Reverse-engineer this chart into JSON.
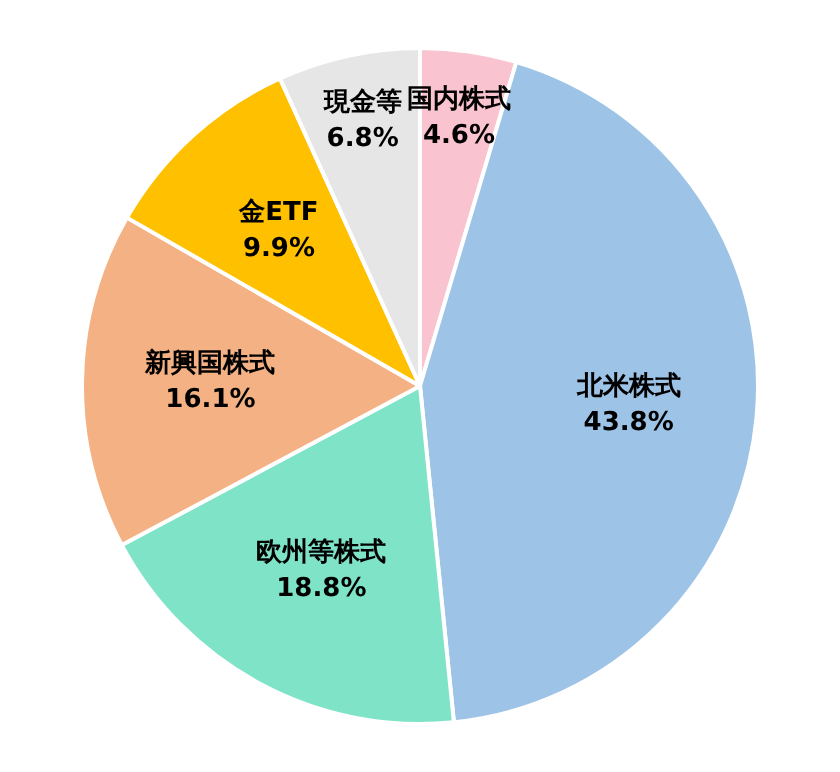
{
  "chart_data": {
    "type": "pie",
    "categories": [
      "国内株式",
      "北米株式",
      "欧州等株式",
      "新興国株式",
      "金ETF",
      "現金等"
    ],
    "values": [
      4.6,
      43.8,
      18.8,
      16.1,
      9.9,
      6.8
    ],
    "value_labels": [
      "4.6%",
      "43.8%",
      "18.8%",
      "16.1%",
      "9.9%",
      "6.8%"
    ],
    "colors": [
      "#f9c3cf",
      "#9dc3e6",
      "#7fe3c8",
      "#f4b183",
      "#ffc000",
      "#e7e6e6"
    ],
    "legend": false
  }
}
